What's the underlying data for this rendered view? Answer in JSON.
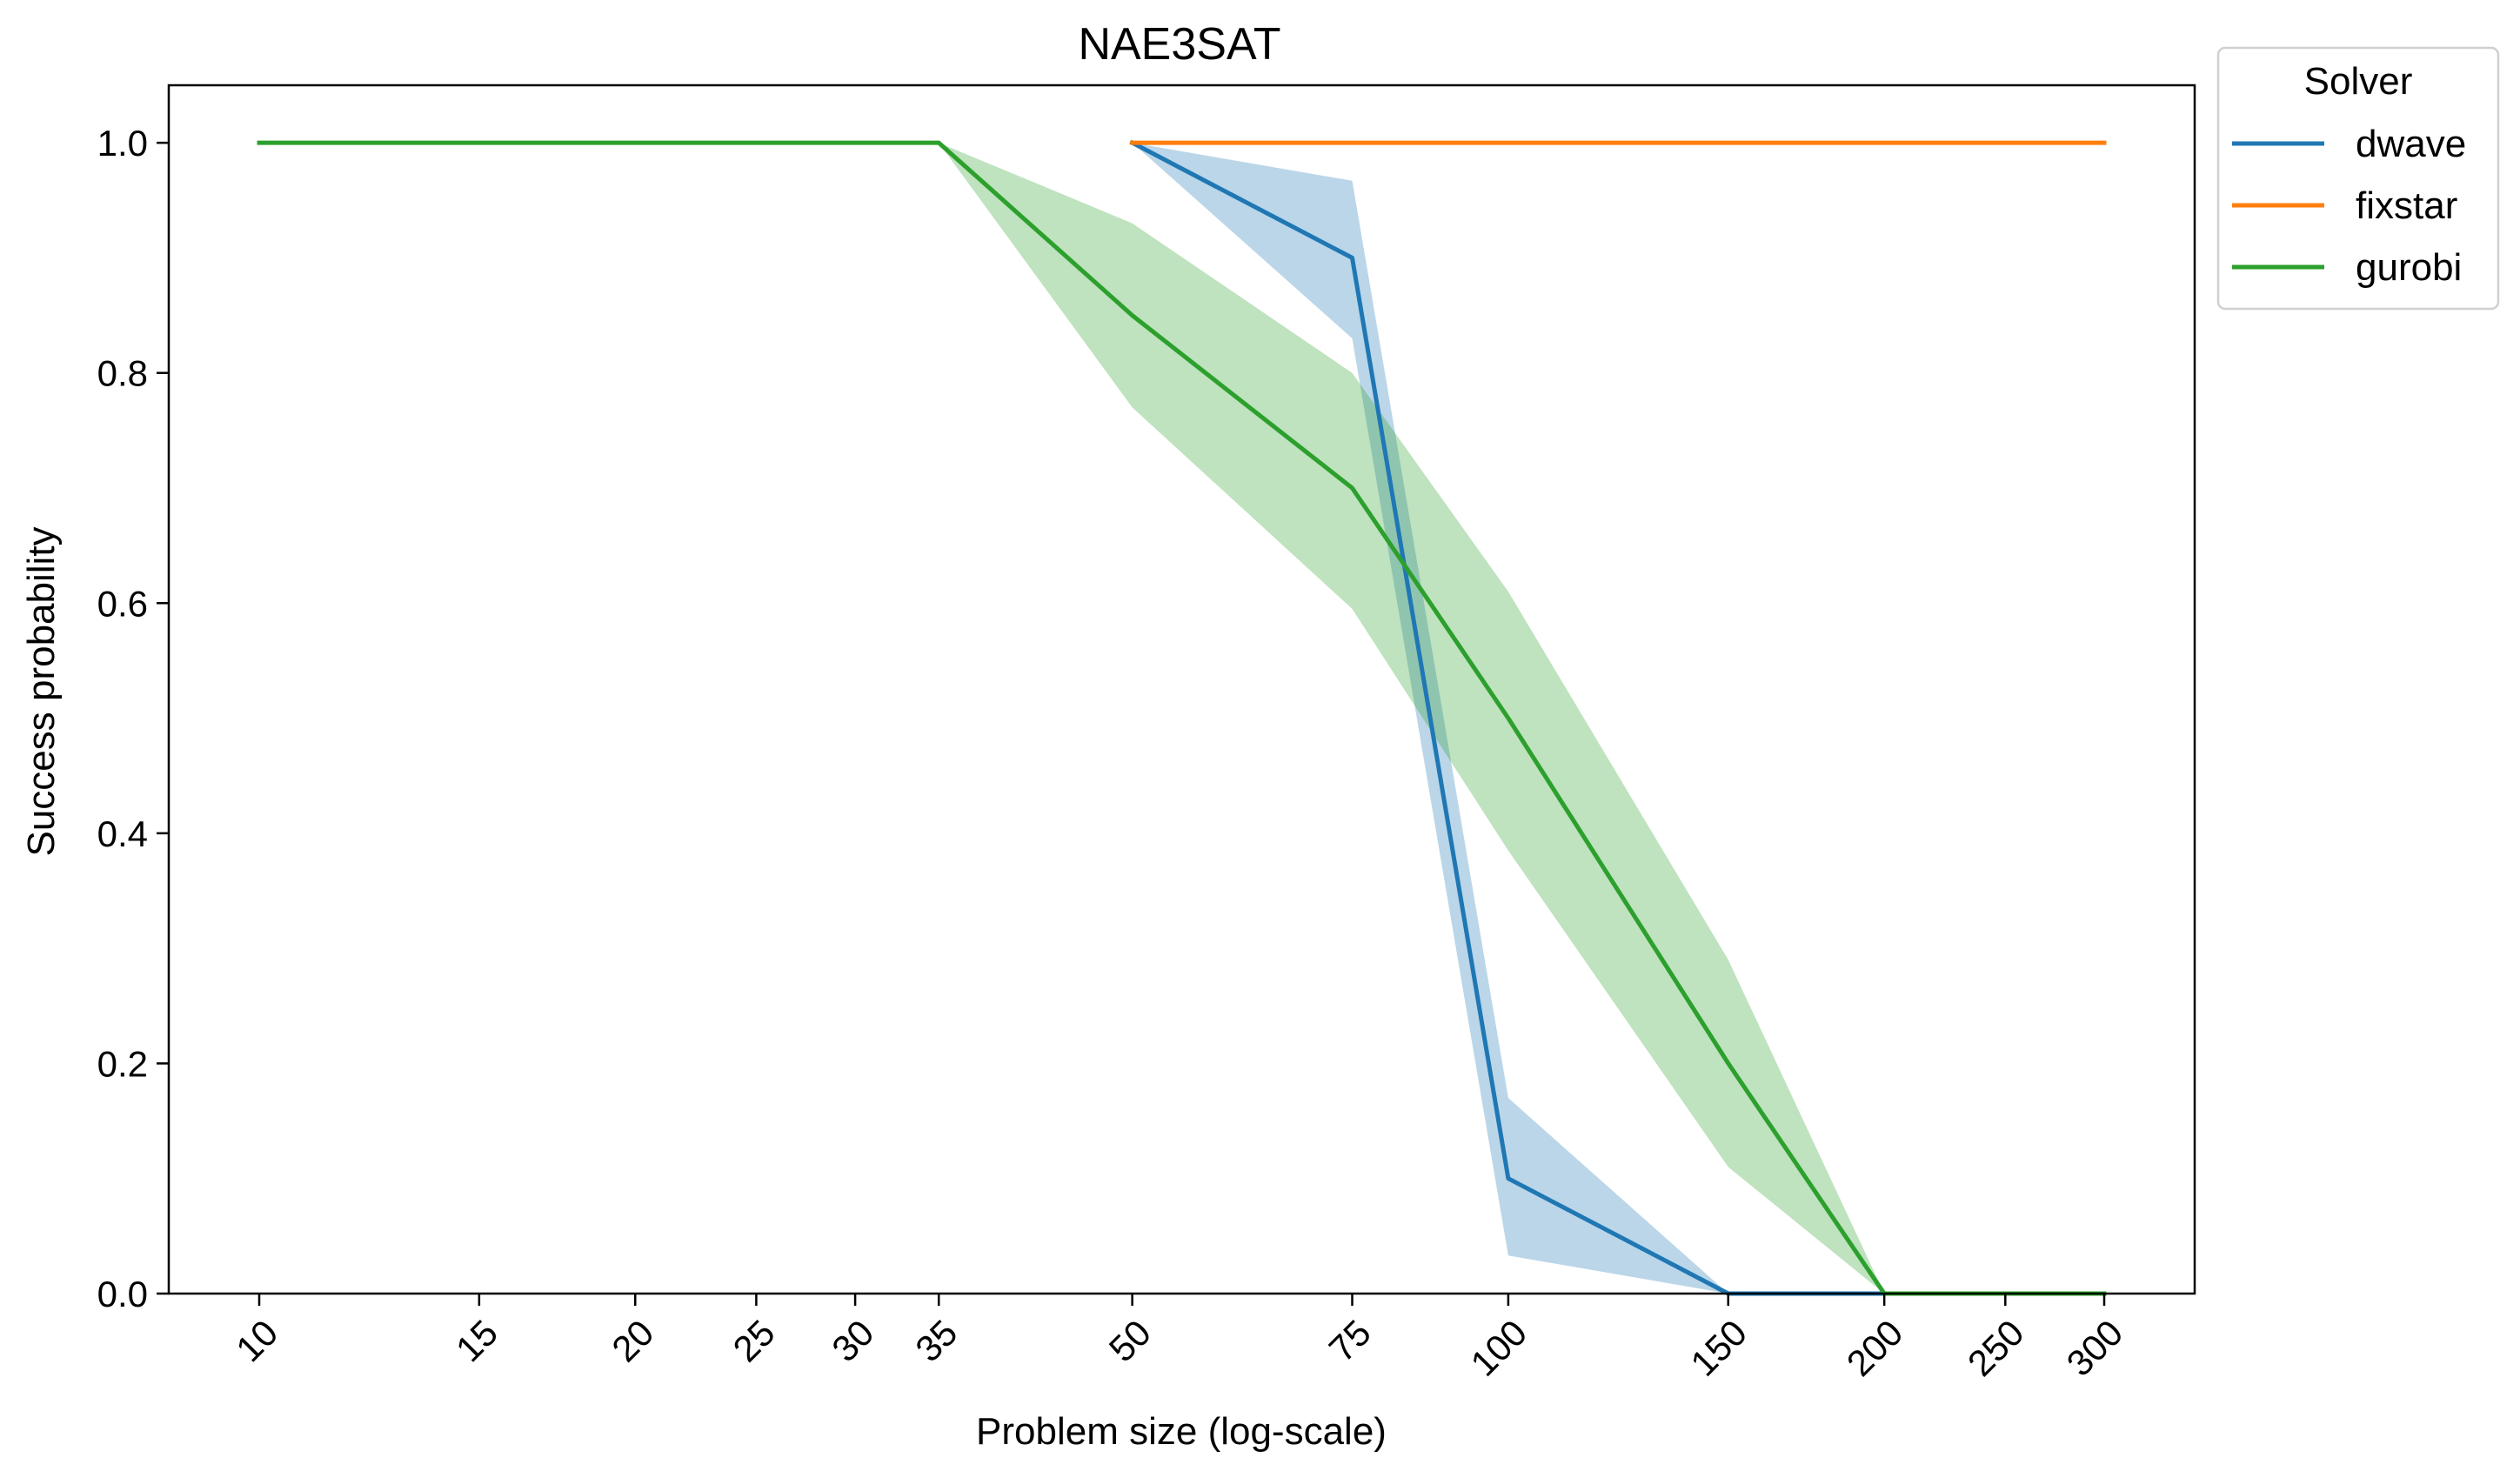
{
  "chart_data": {
    "type": "line",
    "title": "NAE3SAT",
    "xlabel": "Problem size (log-scale)",
    "ylabel": "Success probability",
    "xscale": "log",
    "x_ticks": [
      10,
      15,
      20,
      25,
      30,
      35,
      50,
      75,
      100,
      150,
      200,
      250,
      300
    ],
    "x_tick_labels": [
      "10",
      "15",
      "20",
      "25",
      "30",
      "35",
      "50",
      "75",
      "100",
      "150",
      "200",
      "250",
      "300"
    ],
    "y_ticks": [
      0.0,
      0.2,
      0.4,
      0.6,
      0.8,
      1.0
    ],
    "y_tick_labels": [
      "0.0",
      "0.2",
      "0.4",
      "0.6",
      "0.8",
      "1.0"
    ],
    "ylim": [
      0.0,
      1.05
    ],
    "grid": false,
    "legend": {
      "title": "Solver",
      "placement": "outside-top-right"
    },
    "series": [
      {
        "name": "dwave",
        "color": "#1f77b4",
        "x": [
          50,
          75,
          100,
          150,
          200,
          300
        ],
        "y": [
          1.0,
          0.9,
          0.1,
          0.0,
          0.0,
          0.0
        ],
        "ci_low": [
          1.0,
          0.83,
          0.033,
          0.0,
          0.0,
          0.0
        ],
        "ci_high": [
          1.0,
          0.967,
          0.17,
          0.0,
          0.0,
          0.0
        ]
      },
      {
        "name": "fixstar",
        "color": "#ff7f0e",
        "x": [
          50,
          75,
          100,
          150,
          200,
          300
        ],
        "y": [
          1.0,
          1.0,
          1.0,
          1.0,
          1.0,
          1.0
        ],
        "ci_low": [
          1.0,
          1.0,
          1.0,
          1.0,
          1.0,
          1.0
        ],
        "ci_high": [
          1.0,
          1.0,
          1.0,
          1.0,
          1.0,
          1.0
        ]
      },
      {
        "name": "gurobi",
        "color": "#2ca02c",
        "x": [
          10,
          15,
          20,
          25,
          30,
          35,
          50,
          75,
          100,
          150,
          200,
          300
        ],
        "y": [
          1.0,
          1.0,
          1.0,
          1.0,
          1.0,
          1.0,
          0.85,
          0.7,
          0.5,
          0.2,
          0.0,
          0.0
        ],
        "ci_low": [
          1.0,
          1.0,
          1.0,
          1.0,
          1.0,
          1.0,
          0.77,
          0.595,
          0.385,
          0.11,
          0.0,
          0.0
        ],
        "ci_high": [
          1.0,
          1.0,
          1.0,
          1.0,
          1.0,
          1.0,
          0.93,
          0.8,
          0.61,
          0.29,
          0.0,
          0.0
        ]
      }
    ]
  }
}
